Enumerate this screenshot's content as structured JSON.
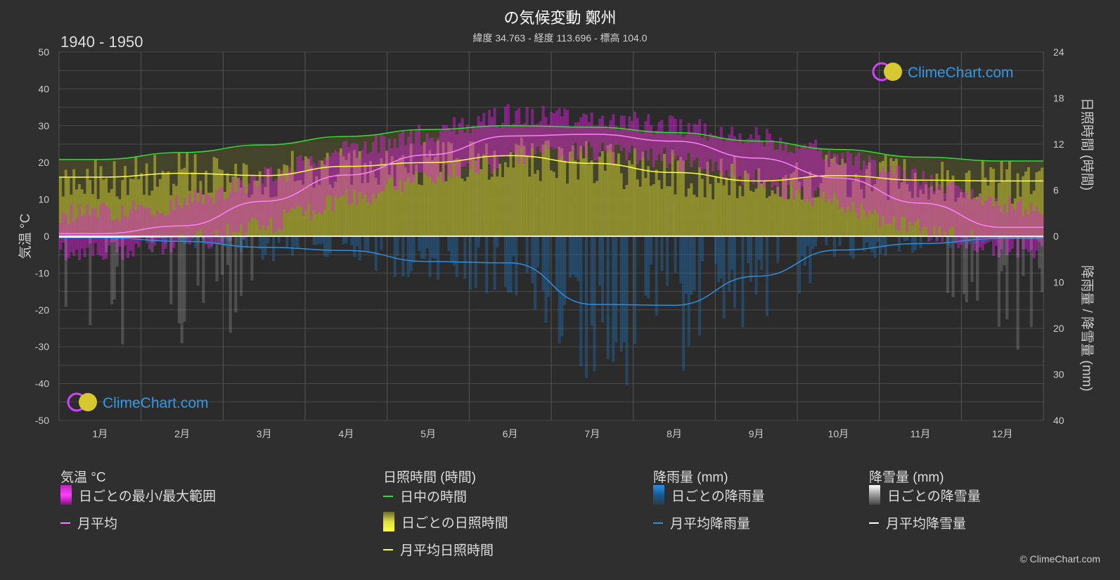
{
  "header": {
    "title": "の気候変動 鄭州",
    "subtitle": "緯度 34.763 - 経度 113.696 - 標高 104.0",
    "period": "1940 - 1950"
  },
  "watermark": {
    "text": "ClimeChart.com"
  },
  "copyright": "© ClimeChart.com",
  "legend": {
    "temperature": {
      "heading": "気温 °C",
      "range_label": "日ごとの最小/最大範囲",
      "avg_label": "月平均"
    },
    "sunshine": {
      "heading": "日照時間 (時間)",
      "daylight_label": "日中の時間",
      "daily_label": "日ごとの日照時間",
      "avg_label": "月平均日照時間"
    },
    "rain": {
      "heading": "降雨量 (mm)",
      "daily_label": "日ごとの降雨量",
      "avg_label": "月平均降雨量"
    },
    "snow": {
      "heading": "降雪量 (mm)",
      "daily_label": "日ごとの降雪量",
      "avg_label": "月平均降雪量"
    }
  },
  "colors": {
    "background": "#2f2f2f",
    "temp_range": "#e020e0",
    "temp_avg": "#ff80ff",
    "daylight": "#33dd33",
    "sunshine_daily": "#c8c832",
    "sunshine_avg": "#ffff44",
    "rain": "#1e78c8",
    "rain_avg": "#2e8fe0",
    "snow": "#cccccc",
    "snow_avg": "#ffffff"
  },
  "chart_data": {
    "type": "line",
    "categories": [
      "1月",
      "2月",
      "3月",
      "4月",
      "5月",
      "6月",
      "7月",
      "8月",
      "9月",
      "10月",
      "11月",
      "12月"
    ],
    "y_left": {
      "label": "気温 °C",
      "ylim": [
        -50,
        50
      ],
      "ticks": [
        50,
        40,
        30,
        20,
        10,
        0,
        -10,
        -20,
        -30,
        -40,
        -50
      ]
    },
    "y_right_top": {
      "label": "日照時間 (時間)",
      "ylim": [
        0,
        24
      ],
      "ticks": [
        24,
        18,
        12,
        6,
        0
      ]
    },
    "y_right_bottom": {
      "label": "降雨量 / 降雪量 (mm)",
      "ylim": [
        0,
        40
      ],
      "ticks": [
        0,
        10,
        20,
        30,
        40
      ]
    },
    "series": [
      {
        "name": "日中の時間",
        "axis": "sunshine",
        "values": [
          10.0,
          10.9,
          11.9,
          13.0,
          13.9,
          14.4,
          14.2,
          13.5,
          12.4,
          11.3,
          10.3,
          9.8
        ]
      },
      {
        "name": "月平均日照時間",
        "axis": "sunshine",
        "values": [
          7.7,
          8.2,
          7.9,
          9.1,
          9.6,
          10.5,
          9.5,
          8.3,
          7.2,
          7.9,
          7.3,
          7.2
        ]
      },
      {
        "name": "月平均",
        "axis": "temperature",
        "values": [
          0.7,
          2.8,
          9.5,
          16.6,
          22.1,
          27.2,
          27.7,
          25.8,
          21.2,
          15.8,
          9.0,
          2.4
        ]
      },
      {
        "name": "月平均降雨量",
        "axis": "precipitation",
        "values": [
          0.3,
          1.1,
          2.4,
          3.1,
          5.5,
          5.8,
          14.8,
          15.0,
          8.7,
          3.0,
          1.6,
          0.5
        ]
      },
      {
        "name": "月平均降雪量",
        "axis": "precipitation",
        "values": [
          0.2,
          0.1,
          0.0,
          0.0,
          0.0,
          0.0,
          0.0,
          0.0,
          0.0,
          0.0,
          0.0,
          0.1
        ]
      }
    ],
    "daily_range": {
      "name": "日ごとの最小/最大範囲",
      "min": [
        -4,
        -2,
        3,
        10,
        16,
        21,
        23,
        21,
        15,
        9,
        2,
        -3
      ],
      "max": [
        6,
        9,
        16,
        23,
        28,
        33,
        32,
        30,
        27,
        22,
        15,
        8
      ]
    },
    "grid": true
  }
}
